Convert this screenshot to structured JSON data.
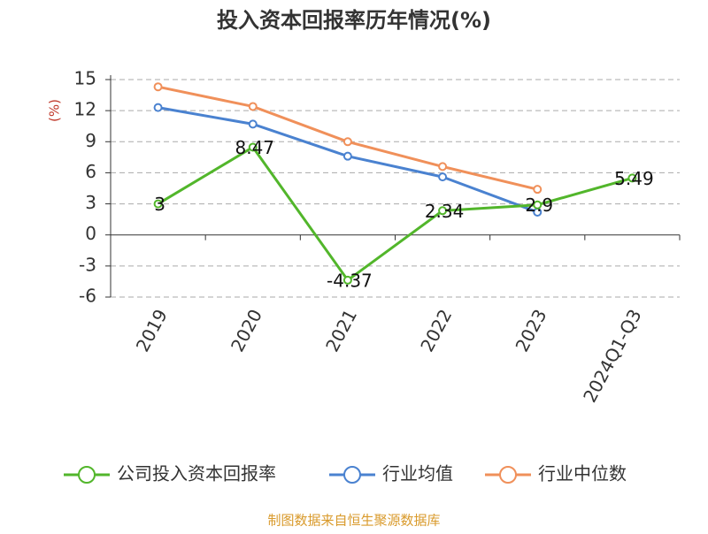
{
  "chart_data": {
    "type": "line",
    "title": "投入资本回报率历年情况(%)",
    "y_label": "(%)",
    "categories": [
      "2019",
      "2020",
      "2021",
      "2022",
      "2023",
      "2024Q1-Q3"
    ],
    "series": [
      {
        "name": "公司投入资本回报率",
        "color": "#52b62b",
        "values": [
          3,
          8.47,
          -4.37,
          2.34,
          2.9,
          5.49
        ],
        "show_labels": true
      },
      {
        "name": "行业均值",
        "color": "#4a82d0",
        "values": [
          12.3,
          10.7,
          7.6,
          5.6,
          2.2,
          null
        ]
      },
      {
        "name": "行业中位数",
        "color": "#f0905a",
        "values": [
          14.3,
          12.4,
          9.0,
          6.6,
          4.4,
          null
        ]
      }
    ],
    "ylim": [
      -6,
      15
    ],
    "yticks": [
      15,
      12,
      9,
      6,
      3,
      0,
      -3,
      -6
    ],
    "grid": true,
    "footer": "制图数据来自恒生聚源数据库"
  }
}
